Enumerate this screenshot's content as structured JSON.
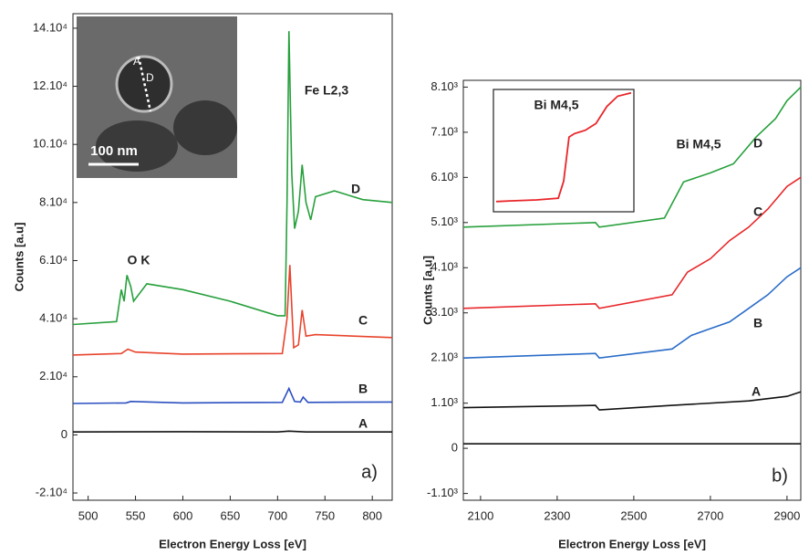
{
  "chart_data": [
    {
      "type": "line",
      "xlabel": "Electron Energy Loss [eV]",
      "ylabel": "Counts [a.u]",
      "xlim": [
        484,
        821
      ],
      "ylim": [
        -22500,
        145000
      ],
      "xticks": [
        500,
        550,
        600,
        650,
        700,
        750,
        800
      ],
      "yticks": [
        {
          "value": -20000,
          "label": "-2.10⁴"
        },
        0,
        {
          "value": 20000,
          "label": "2.10⁴"
        },
        {
          "value": 40000,
          "label": "4.10⁴"
        },
        {
          "value": 60000,
          "label": "6.10⁴"
        },
        {
          "value": 80000,
          "label": "8.10⁴"
        },
        {
          "value": 100000,
          "label": "10.10⁴"
        },
        {
          "value": 120000,
          "label": "12.10⁴"
        },
        {
          "value": 140000,
          "label": "14.10⁴"
        }
      ],
      "annotations": [
        "Fe L2,3",
        "O K"
      ],
      "panel_label": "a)",
      "inset": {
        "scale_bar": "100 nm",
        "labels": [
          "A",
          "D"
        ]
      },
      "series": [
        {
          "name": "A",
          "color": "#111111",
          "x": [
            484,
            600,
            700,
            712,
            730,
            821
          ],
          "values": [
            1000,
            1100,
            1000,
            1300,
            1000,
            1000
          ]
        },
        {
          "name": "B",
          "color": "#2a4fc0",
          "x": [
            484,
            540,
            545,
            600,
            705,
            712,
            718,
            724,
            727,
            732,
            821
          ],
          "values": [
            10800,
            11000,
            11500,
            11000,
            11200,
            16000,
            11500,
            11300,
            13000,
            11200,
            11300
          ]
        },
        {
          "name": "C",
          "color": "#e8432c",
          "x": [
            484,
            535,
            542,
            550,
            600,
            705,
            710,
            713,
            717,
            722,
            726,
            730,
            740,
            821
          ],
          "values": [
            27500,
            28000,
            29500,
            28500,
            27800,
            28000,
            40000,
            58500,
            30000,
            31000,
            43000,
            34000,
            34500,
            33500
          ]
        },
        {
          "name": "D",
          "color": "#27a03c",
          "x": [
            484,
            530,
            535,
            538,
            541,
            545,
            548,
            555,
            562,
            600,
            650,
            700,
            708,
            710,
            712,
            715,
            718,
            722,
            726,
            730,
            735,
            740,
            760,
            790,
            821
          ],
          "values": [
            38000,
            39000,
            50000,
            46000,
            55000,
            51000,
            46000,
            49000,
            52000,
            50000,
            46000,
            41000,
            41000,
            80000,
            139000,
            90000,
            71000,
            77000,
            93000,
            80000,
            74000,
            82000,
            84000,
            81000,
            80000
          ]
        }
      ]
    },
    {
      "type": "line",
      "xlabel": "Electron Energy Loss [eV]",
      "ylabel": "Counts [a.u]",
      "xlim": [
        2055,
        2936
      ],
      "ylim": [
        -1150,
        8150
      ],
      "xticks": [
        2100,
        2300,
        2500,
        2700,
        2900
      ],
      "yticks": [
        {
          "value": -1000,
          "label": "-1.10³"
        },
        0,
        {
          "value": 1000,
          "label": "1.10³"
        },
        {
          "value": 2000,
          "label": "2.10³"
        },
        {
          "value": 3000,
          "label": "3.10³"
        },
        {
          "value": 4000,
          "label": "4.10³"
        },
        {
          "value": 5000,
          "label": "5.10³"
        },
        {
          "value": 6000,
          "label": "6.10³"
        },
        {
          "value": 7000,
          "label": "7.10³"
        },
        {
          "value": 8000,
          "label": "8.10³"
        }
      ],
      "annotations": [
        "Bi M4,5"
      ],
      "panel_label": "b)",
      "inset": {
        "title": "Bi M4,5",
        "color": "#e8262a",
        "xlim": [
          2440,
          2960
        ],
        "ylim": [
          4700,
          8300
        ],
        "x": [
          2450,
          2500,
          2600,
          2680,
          2700,
          2720,
          2740,
          2780,
          2820,
          2860,
          2900,
          2950
        ],
        "values": [
          5000,
          5020,
          5050,
          5100,
          5600,
          6900,
          7000,
          7100,
          7300,
          7800,
          8100,
          8200
        ]
      },
      "series": [
        {
          "color": "#111111",
          "x": [
            2055,
            2936
          ],
          "values": [
            100,
            100
          ]
        },
        {
          "name": "A",
          "color": "#111111",
          "x": [
            2055,
            2400,
            2410,
            2600,
            2800,
            2900,
            2936
          ],
          "values": [
            900,
            950,
            850,
            950,
            1050,
            1150,
            1250
          ]
        },
        {
          "name": "B",
          "color": "#2a6cc8",
          "x": [
            2055,
            2400,
            2410,
            2600,
            2650,
            2700,
            2750,
            2800,
            2850,
            2900,
            2936
          ],
          "values": [
            2000,
            2100,
            2000,
            2200,
            2500,
            2650,
            2800,
            3100,
            3400,
            3800,
            4000
          ]
        },
        {
          "name": "C",
          "color": "#e8262a",
          "x": [
            2055,
            2400,
            2410,
            2600,
            2640,
            2700,
            2750,
            2800,
            2850,
            2900,
            2936
          ],
          "values": [
            3100,
            3200,
            3100,
            3400,
            3900,
            4200,
            4600,
            4900,
            5300,
            5800,
            6000
          ]
        },
        {
          "name": "D",
          "color": "#27a03c",
          "x": [
            2055,
            2400,
            2410,
            2580,
            2630,
            2700,
            2760,
            2820,
            2870,
            2900,
            2936
          ],
          "values": [
            4900,
            5000,
            4900,
            5100,
            5900,
            6100,
            6300,
            6900,
            7300,
            7700,
            8000
          ]
        }
      ]
    }
  ]
}
